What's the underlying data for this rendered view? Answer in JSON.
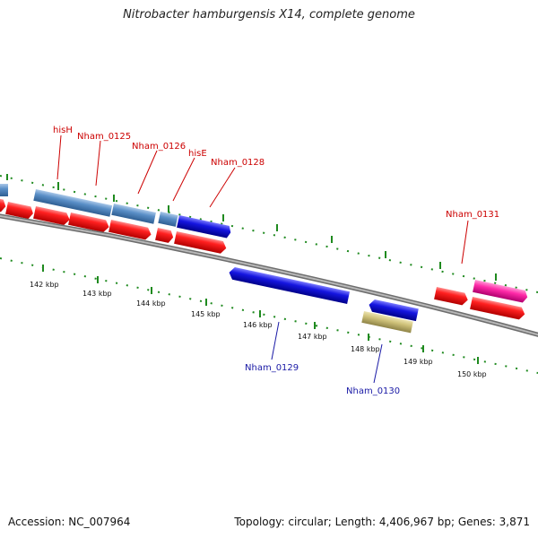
{
  "title": "Nitrobacter hamburgensis X14, complete genome",
  "footer": {
    "accession": "Accession: NC_007964",
    "summary": "Topology: circular; Length: 4,406,967 bp; Genes: 3,871"
  },
  "tick_labels": [
    "142 kbp",
    "143 kbp",
    "144 kbp",
    "145 kbp",
    "146 kbp",
    "147 kbp",
    "148 kbp",
    "149 kbp",
    "150 kbp"
  ],
  "gene_labels": [
    {
      "text": "hisH",
      "color": "#cc0000"
    },
    {
      "text": "Nham_0125",
      "color": "#cc0000"
    },
    {
      "text": "Nham_0126",
      "color": "#cc0000"
    },
    {
      "text": "hisE",
      "color": "#cc0000"
    },
    {
      "text": "Nham_0128",
      "color": "#cc0000"
    },
    {
      "text": "Nham_0131",
      "color": "#cc0000"
    },
    {
      "text": "Nham_0129",
      "color": "#1a1aa6"
    },
    {
      "text": "Nham_0130",
      "color": "#1a1aa6"
    }
  ],
  "colors": {
    "cds_red": "#ff1a1a",
    "gene_steelblue": "#5a8fc7",
    "cds_blue": "#1515e0",
    "gene_pink": "#ff2aa8",
    "gene_khaki": "#cfc27a",
    "backbone": "#8c8c8c",
    "tick_green": "#1f8a1f"
  }
}
